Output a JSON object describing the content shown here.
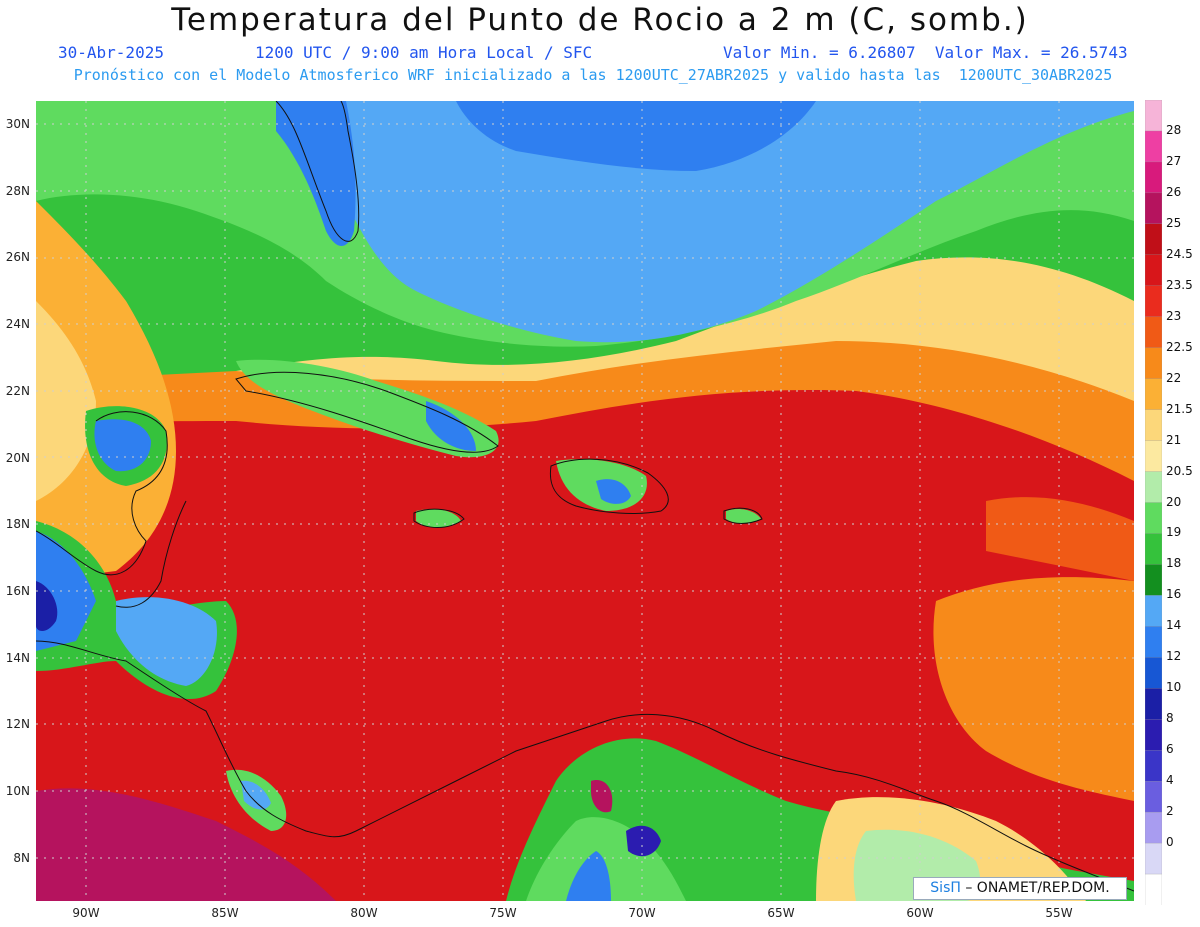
{
  "header": {
    "title": "Temperatura del Punto de Rocio a 2 m (C, somb.)",
    "date": "30-Abr-2025",
    "time": "1200 UTC / 9:00 am Hora Local / SFC",
    "minmax": "Valor Min. = 6.26807  Valor Max. = 26.5743",
    "model": "Pronóstico con el Modelo Atmosferico WRF inicializado a las 1200UTC_27ABR2025 y valido hasta las  1200UTC_30ABR2025"
  },
  "credit": {
    "brand": "SisΠ",
    "text": " – ONAMET/REP.DOM."
  },
  "lat_labels": [
    "30N",
    "28N",
    "26N",
    "24N",
    "22N",
    "20N",
    "18N",
    "16N",
    "14N",
    "12N",
    "10N",
    "8N"
  ],
  "lon_labels": [
    "90W",
    "85W",
    "80W",
    "75W",
    "70W",
    "65W",
    "60W",
    "55W"
  ],
  "colorbar": {
    "labels": [
      "28",
      "27",
      "26",
      "25",
      "24.5",
      "23.5",
      "23",
      "22.5",
      "22",
      "21.5",
      "21",
      "20.5",
      "20",
      "19",
      "18",
      "16",
      "14",
      "12",
      "10",
      "8",
      "6",
      "4",
      "2",
      "0"
    ],
    "colors": [
      "#f6b4d8",
      "#ee3fa3",
      "#d81a7c",
      "#b5135e",
      "#c00f18",
      "#d8161a",
      "#ea2c1e",
      "#f05a16",
      "#f78a1a",
      "#fbb035",
      "#fcd77a",
      "#fce9a0",
      "#b2ecaa",
      "#5fdb5f",
      "#35c23c",
      "#138f1f",
      "#54a8f5",
      "#2f7ff0",
      "#1757d4",
      "#1b1fa6",
      "#2b1cb0",
      "#3a35c8",
      "#6a5ee0",
      "#a89cf0",
      "#d9d8f6",
      "#ffffff"
    ]
  }
}
